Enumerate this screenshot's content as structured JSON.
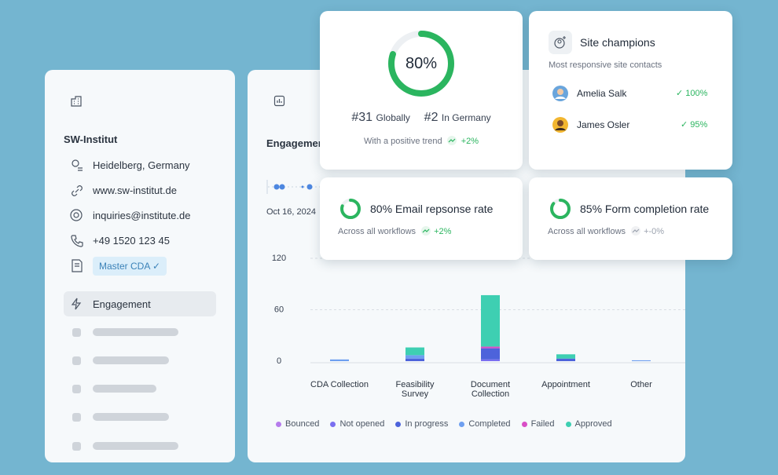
{
  "sidebar": {
    "org": "SW-Institut",
    "details": [
      "Heidelberg, Germany",
      "www.sw-institut.de",
      "inquiries@institute.de",
      "+49 1520 123 45"
    ],
    "badge": "Master CDA",
    "nav_active": "Engagement"
  },
  "engagement": {
    "title": "Engagement",
    "date": "Oct 16, 2024"
  },
  "chart_data": {
    "type": "bar",
    "stacked": true,
    "categories": [
      "CDA Collection",
      "Feasibility Survey",
      "Document Collection",
      "Appointment",
      "Other"
    ],
    "series": [
      {
        "name": "Bounced",
        "color": "#b67cec",
        "values": [
          0,
          0,
          0,
          0,
          0
        ]
      },
      {
        "name": "Not opened",
        "color": "#7a6ff0",
        "values": [
          0,
          0,
          2,
          0,
          0
        ]
      },
      {
        "name": "In progress",
        "color": "#4d63db",
        "values": [
          0,
          3,
          13,
          3,
          0
        ]
      },
      {
        "name": "Completed",
        "color": "#6e9ff0",
        "values": [
          2,
          4,
          0,
          0,
          1
        ]
      },
      {
        "name": "Failed",
        "color": "#d94fc6",
        "values": [
          0,
          0,
          2,
          0,
          0
        ]
      },
      {
        "name": "Approved",
        "color": "#3ecfb2",
        "values": [
          0,
          9,
          60,
          5,
          0
        ]
      }
    ],
    "ylim": [
      0,
      120
    ],
    "yticks": [
      0,
      60,
      120
    ],
    "grid": true
  },
  "score_card": {
    "score": {
      "value": 80,
      "label": "80%"
    },
    "global_rank": "#31",
    "global_label": "Globally",
    "country_rank": "#2",
    "country_label": "In Germany",
    "trend_text": "With a positive trend",
    "trend": "+2%"
  },
  "champions": {
    "title": "Site champions",
    "subtitle": "Most responsive site contacts",
    "people": [
      {
        "name": "Amelia Salk",
        "rate": "100%"
      },
      {
        "name": "James Osler",
        "rate": "95%"
      }
    ]
  },
  "rate_cards": [
    {
      "value": 80,
      "title": "80% Email repsonse rate",
      "subtitle": "Across all workflows",
      "trend": "+2%",
      "positive": true
    },
    {
      "value": 85,
      "title": "85% Form completion rate",
      "subtitle": "Across all workflows",
      "trend": "+-0%",
      "positive": false
    }
  ]
}
